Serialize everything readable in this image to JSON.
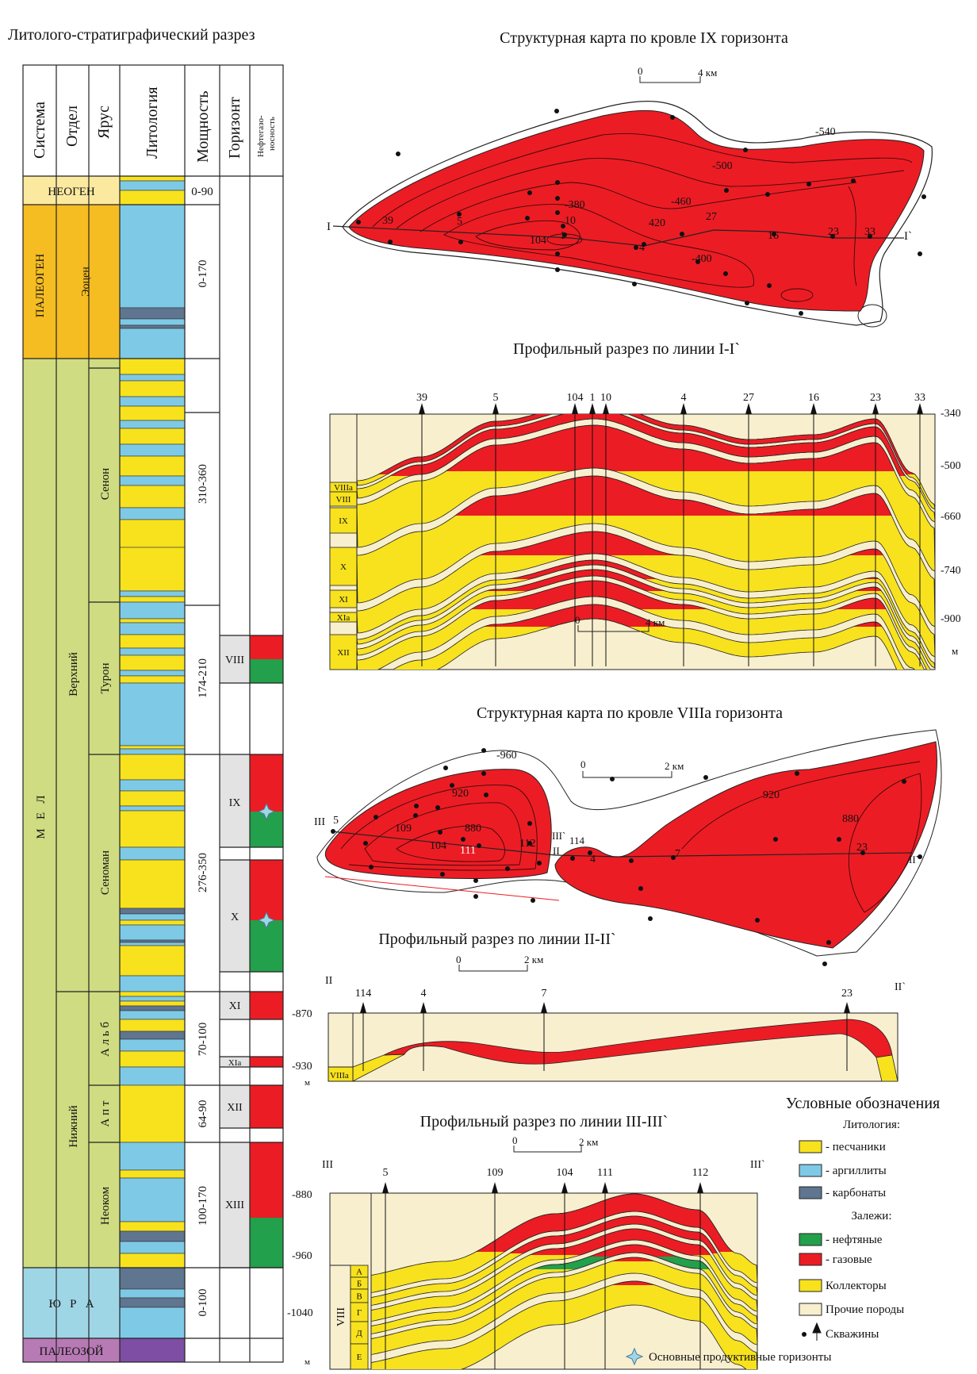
{
  "colors": {
    "sandstone": "#f7e21d",
    "mudstone": "#7ecae6",
    "carbonate": "#5f7590",
    "oil": "#22a04b",
    "gas": "#ec1c24",
    "collector": "#f7e21d",
    "other": "#f8efcf",
    "neogen": "#fbe9a0",
    "paleogen": "#f5bd22",
    "mel": "#cfdc82",
    "jura": "#9fd6e6",
    "paleozoic": "#b77ab5"
  },
  "strat": {
    "title": "Литолого-стратиграфический разрез",
    "headers": {
      "system": "Система",
      "department": "Отдел",
      "stage": "Ярус",
      "lithology": "Литология",
      "thickness": "Мощность",
      "horizon": "Горизонт",
      "oilgas": "Нефтегазо-\nносность",
      "oilgas_1": "Нефтегазо-",
      "oilgas_2": "носность"
    },
    "systems": {
      "neogen": "НЕОГЕН",
      "paleogen": "ПАЛЕОГЕН",
      "mel": "М   Е   Л",
      "jura": "Ю   Р   А",
      "paleozoic": "ПАЛЕОЗОЙ"
    },
    "departments": {
      "eocene": "Эоцен",
      "upper": "Верхний",
      "lower": "Нижний"
    },
    "stages": {
      "senon": "Сенон",
      "turon": "Турон",
      "cenoman": "Сеноман",
      "alb": "А л ь б",
      "apt": "А п т",
      "neocom": "Неоком"
    },
    "thickness": {
      "neogen": "0-90",
      "paleogen": "0-170",
      "senon": "310-360",
      "turon": "174-210",
      "cenoman": "276-350",
      "alb": "70-100",
      "apt": "64-90",
      "neocom": "100-170",
      "jura": "0-100"
    },
    "horizons": {
      "viii": "VIII",
      "ix": "IX",
      "x": "X",
      "xi": "XI",
      "xia": "XIa",
      "xii": "XII",
      "xiii": "XIII"
    }
  },
  "map1": {
    "title": "Структурная карта по кровле IX горизонта",
    "scale": {
      "zero": "0",
      "end": "4 км"
    },
    "line_start": "I",
    "line_end": "I`",
    "contours": [
      "-540",
      "-500",
      "-460",
      "-380",
      "420",
      "-400"
    ],
    "wells": [
      "39",
      "5",
      "10",
      "104",
      "1",
      "27",
      "4",
      "16",
      "23",
      "33"
    ]
  },
  "section1": {
    "title": "Профильный разрез по линии I-I`",
    "wells": [
      "39",
      "5",
      "104",
      "1",
      "10",
      "4",
      "27",
      "16",
      "23",
      "33"
    ],
    "depths": [
      "-340",
      "-500",
      "-660",
      "-740",
      "-900"
    ],
    "unit": "м",
    "horizons": [
      "VIIIa",
      "VIII",
      "IX",
      "X",
      "XI",
      "XIa",
      "XII"
    ],
    "scale": {
      "zero": "0",
      "end": "4 км"
    }
  },
  "map2": {
    "title": "Структурная карта по кровле VIIIa горизонта",
    "scale": {
      "zero": "0",
      "end": "2 км"
    },
    "contours": [
      "-960",
      "920",
      "880",
      "920",
      "880"
    ],
    "wells": [
      "5",
      "109",
      "104",
      "111",
      "112",
      "114",
      "4",
      "7",
      "23"
    ],
    "lines": {
      "iii": "III",
      "iii_end": "III`",
      "ii": "II",
      "ii_end": "II`"
    }
  },
  "section2": {
    "title": "Профильный разрез по линии II-II`",
    "scale": {
      "zero": "0",
      "end": "2 км"
    },
    "line_start": "II",
    "line_end": "II`",
    "wells": [
      "114",
      "4",
      "7",
      "23"
    ],
    "depths": [
      "-870",
      "-930"
    ],
    "unit": "м",
    "horizon": "VIIIa"
  },
  "section3": {
    "title": "Профильный разрез по линии III-III`",
    "scale": {
      "zero": "0",
      "end": "2 км"
    },
    "line_start": "III",
    "line_end": "III`",
    "wells": [
      "5",
      "109",
      "104",
      "111",
      "112"
    ],
    "depths": [
      "-880",
      "-960",
      "-1040"
    ],
    "unit": "м",
    "horizon": "VIII",
    "sublayers": [
      "А",
      "Б",
      "В",
      "Г",
      "Д",
      "Е"
    ]
  },
  "legend": {
    "title": "Условные обозначения",
    "lithology_header": "Литология:",
    "sandstone": "- песчаники",
    "mudstone": "- аргиллиты",
    "carbonate": "- карбонаты",
    "deposits_header": "Залежи:",
    "oil": "- нефтяные",
    "gas": "- газовые",
    "collectors": "Коллекторы",
    "other": "Прочие породы",
    "wells": "Скважины",
    "main_horizons": "Основные продуктивные горизонты"
  }
}
